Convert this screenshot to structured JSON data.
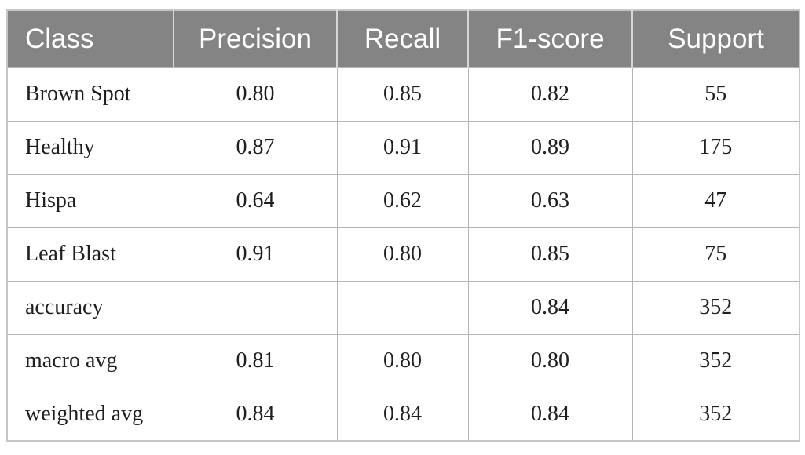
{
  "table": {
    "columns": [
      {
        "key": "class",
        "label": "Class"
      },
      {
        "key": "precision",
        "label": "Precision"
      },
      {
        "key": "recall",
        "label": "Recall"
      },
      {
        "key": "f1",
        "label": "F1-score"
      },
      {
        "key": "support",
        "label": "Support"
      }
    ],
    "rows": [
      {
        "class": "Brown Spot",
        "precision": "0.80",
        "recall": "0.85",
        "f1": "0.82",
        "support": "55"
      },
      {
        "class": "Healthy",
        "precision": "0.87",
        "recall": "0.91",
        "f1": "0.89",
        "support": "175"
      },
      {
        "class": "Hispa",
        "precision": "0.64",
        "recall": "0.62",
        "f1": "0.63",
        "support": "47"
      },
      {
        "class": "Leaf Blast",
        "precision": "0.91",
        "recall": "0.80",
        "f1": "0.85",
        "support": "75"
      },
      {
        "class": "accuracy",
        "precision": "",
        "recall": "",
        "f1": "0.84",
        "support": "352"
      },
      {
        "class": "macro avg",
        "precision": "0.81",
        "recall": "0.80",
        "f1": "0.80",
        "support": "352"
      },
      {
        "class": "weighted avg",
        "precision": "0.84",
        "recall": "0.84",
        "f1": "0.84",
        "support": "352"
      }
    ]
  },
  "colors": {
    "header_bg": "#848484",
    "header_text": "#ffffff",
    "header_divider": "#d6d6d6",
    "grid_line": "#b5b5b5",
    "outer_border": "#c6c6c6",
    "body_text": "#1f1f1f",
    "page_bg": "#ffffff"
  }
}
